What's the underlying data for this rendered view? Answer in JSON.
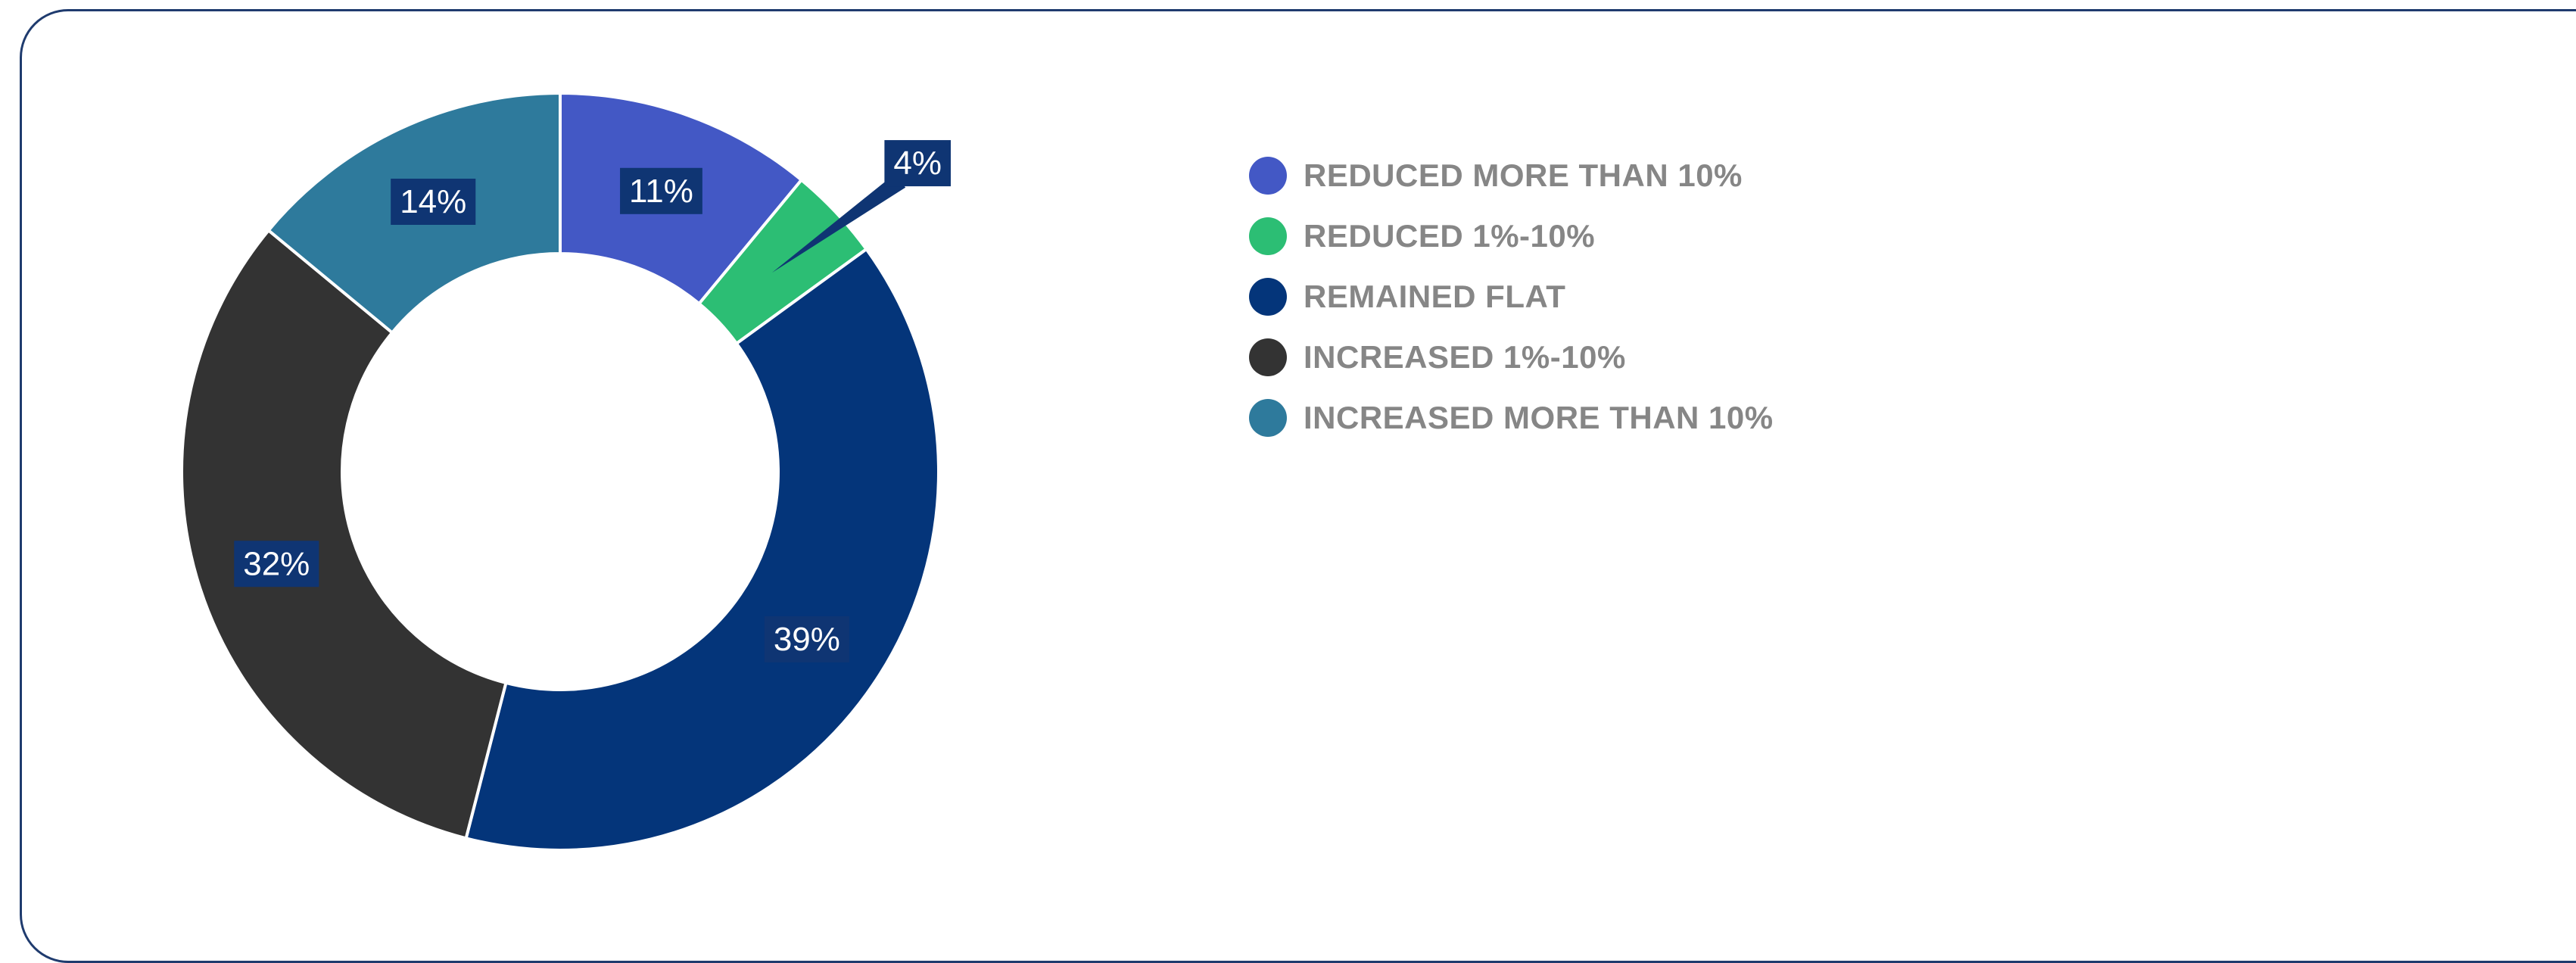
{
  "chart_data": {
    "type": "pie",
    "variant": "donut",
    "title": "",
    "slices": [
      {
        "label": "REDUCED MORE THAN 10%",
        "value": 11,
        "display": "11%",
        "color": "#4358C5"
      },
      {
        "label": "REDUCED 1%-10%",
        "value": 4,
        "display": "4%",
        "color": "#2CBE74"
      },
      {
        "label": "REMAINED FLAT",
        "value": 39,
        "display": "39%",
        "color": "#04357A"
      },
      {
        "label": "INCREASED 1%-10%",
        "value": 32,
        "display": "32%",
        "color": "#333333"
      },
      {
        "label": "INCREASED MORE THAN 10%",
        "value": 14,
        "display": "14%",
        "color": "#2E7A9C"
      }
    ],
    "data_label_bg": "#0F3573",
    "legend_placement": "right"
  }
}
